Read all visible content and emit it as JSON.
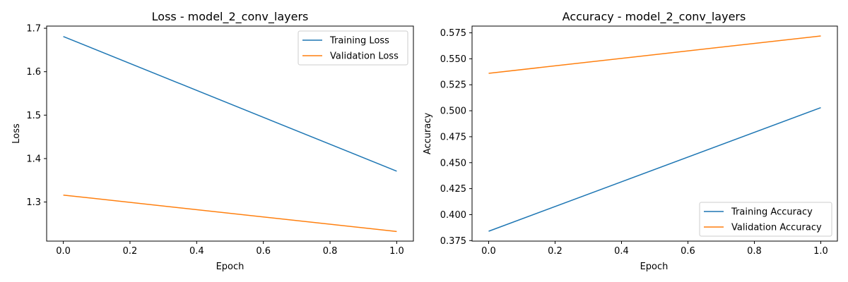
{
  "chart_data": [
    {
      "type": "line",
      "title": "Loss - model_2_conv_layers",
      "xlabel": "Epoch",
      "ylabel": "Loss",
      "xlim": [
        -0.05,
        1.05
      ],
      "ylim": [
        1.21,
        1.705
      ],
      "xticks": [
        "0.0",
        "0.2",
        "0.4",
        "0.6",
        "0.8",
        "1.0"
      ],
      "yticks": [
        "1.3",
        "1.4",
        "1.5",
        "1.6",
        "1.7"
      ],
      "legend_position": "upper right",
      "grid": false,
      "x": [
        0,
        1
      ],
      "series": [
        {
          "name": "Training Loss",
          "color": "#1f77b4",
          "values": [
            1.681,
            1.371
          ]
        },
        {
          "name": "Validation Loss",
          "color": "#ff7f0e",
          "values": [
            1.316,
            1.232
          ]
        }
      ]
    },
    {
      "type": "line",
      "title": "Accuracy - model_2_conv_layers",
      "xlabel": "Epoch",
      "ylabel": "Accuracy",
      "xlim": [
        -0.05,
        1.05
      ],
      "ylim": [
        0.3745,
        0.5815
      ],
      "xticks": [
        "0.0",
        "0.2",
        "0.4",
        "0.6",
        "0.8",
        "1.0"
      ],
      "yticks": [
        "0.375",
        "0.400",
        "0.425",
        "0.450",
        "0.475",
        "0.500",
        "0.525",
        "0.550",
        "0.575"
      ],
      "legend_position": "lower right",
      "grid": false,
      "x": [
        0,
        1
      ],
      "series": [
        {
          "name": "Training Accuracy",
          "color": "#1f77b4",
          "values": [
            0.384,
            0.503
          ]
        },
        {
          "name": "Validation Accuracy",
          "color": "#ff7f0e",
          "values": [
            0.536,
            0.572
          ]
        }
      ]
    }
  ]
}
